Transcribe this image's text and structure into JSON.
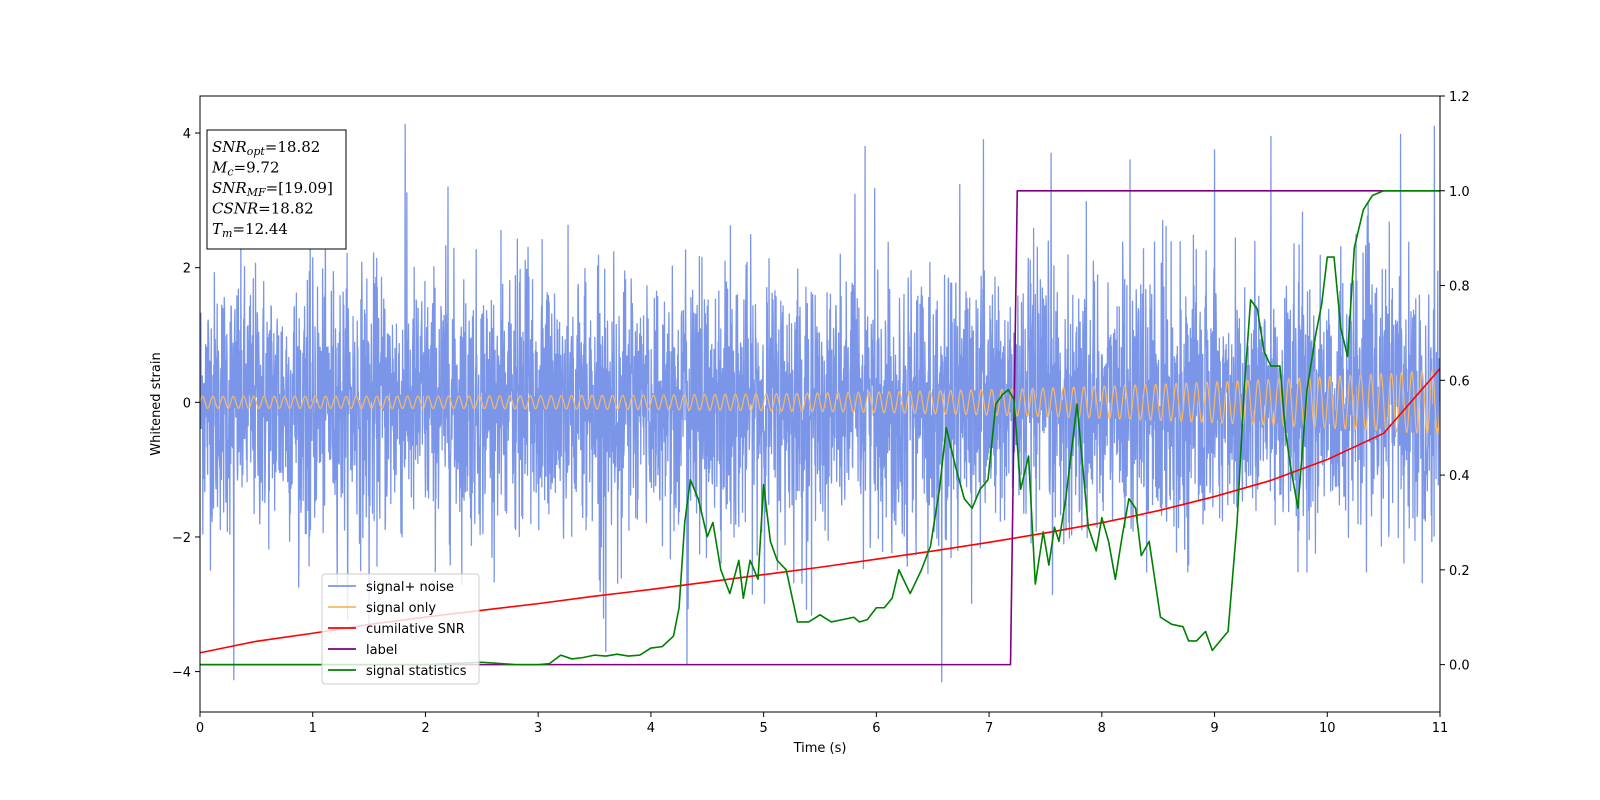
{
  "chart_data": {
    "type": "line",
    "title": "",
    "xlabel": "Time (s)",
    "ylabel": "Whitened strain",
    "y2label": "",
    "xlim": [
      0,
      11
    ],
    "ylim": [
      -4.6,
      4.55
    ],
    "y2lim": [
      -0.1,
      1.2
    ],
    "xticks": [
      0,
      1,
      2,
      3,
      4,
      5,
      6,
      7,
      8,
      9,
      10,
      11
    ],
    "yticks": [
      -4,
      -2,
      0,
      2,
      4
    ],
    "y2ticks": [
      0.0,
      0.2,
      0.4,
      0.6,
      0.8,
      1.0,
      1.2
    ],
    "y2tick_labels": [
      "0.0",
      "0.2",
      "0.4",
      "0.6",
      "0.8",
      "1.0",
      "1.2"
    ],
    "grid": false,
    "legend_position": "lower-left",
    "stats_box": {
      "position": "top-left",
      "lines": [
        {
          "symbol": "SNR",
          "sub": "opt",
          "value": "=18.82"
        },
        {
          "symbol": "M",
          "sub": "c",
          "value": "=9.72"
        },
        {
          "symbol": "SNR",
          "sub": "MF",
          "value": "=[19.09]"
        },
        {
          "symbol": "CSNR",
          "sub": "",
          "value": "=18.82"
        },
        {
          "symbol": "T",
          "sub": "m",
          "value": "=12.44"
        }
      ]
    },
    "series": [
      {
        "name": "signal+ noise",
        "axis": "left",
        "color": "#7b96e8",
        "kind": "noise",
        "std": 0.95,
        "max_abs": 4.15,
        "spikes": [
          [
            1.82,
            4.13
          ],
          [
            0.3,
            -4.12
          ],
          [
            6.58,
            -4.15
          ],
          [
            10.95,
            4.1
          ],
          [
            4.32,
            -3.9
          ],
          [
            5.9,
            3.8
          ],
          [
            6.95,
            3.9
          ],
          [
            9.5,
            3.95
          ],
          [
            10.65,
            3.98
          ],
          [
            3.6,
            -3.7
          ],
          [
            8.25,
            3.6
          ],
          [
            2.2,
            3.2
          ],
          [
            1.5,
            -3.4
          ],
          [
            7.55,
            3.7
          ],
          [
            9.0,
            3.75
          ]
        ]
      },
      {
        "name": "signal only",
        "axis": "left",
        "color": "#f5b86a",
        "kind": "chirp",
        "amp_start": 0.09,
        "amp_end": 0.48,
        "cycles_per_second": 11
      },
      {
        "name": "cumilative SNR",
        "axis": "left",
        "color": "#ff0000",
        "x": [
          0,
          0.5,
          1,
          1.5,
          2,
          2.5,
          3,
          3.5,
          4,
          4.5,
          5,
          5.5,
          6,
          6.5,
          7,
          7.5,
          8,
          8.5,
          9,
          9.5,
          10,
          10.5,
          11
        ],
        "y": [
          -3.72,
          -3.55,
          -3.43,
          -3.3,
          -3.19,
          -3.09,
          -2.99,
          -2.88,
          -2.78,
          -2.67,
          -2.56,
          -2.45,
          -2.33,
          -2.21,
          -2.08,
          -1.94,
          -1.79,
          -1.61,
          -1.4,
          -1.16,
          -0.85,
          -0.46,
          0.5
        ]
      },
      {
        "name": "label",
        "axis": "right",
        "color": "#800080",
        "x": [
          0,
          7.19,
          7.25,
          11
        ],
        "y": [
          0.0,
          0.0,
          1.0,
          1.0
        ]
      },
      {
        "name": "signal statistics",
        "axis": "right",
        "color": "#008000",
        "x": [
          0,
          0.5,
          1,
          1.5,
          2,
          2.5,
          2.8,
          3.0,
          3.1,
          3.2,
          3.3,
          3.4,
          3.5,
          3.6,
          3.7,
          3.8,
          3.9,
          4.0,
          4.1,
          4.2,
          4.25,
          4.3,
          4.35,
          4.42,
          4.5,
          4.55,
          4.62,
          4.7,
          4.78,
          4.82,
          4.88,
          4.95,
          5.0,
          5.06,
          5.12,
          5.2,
          5.3,
          5.4,
          5.5,
          5.6,
          5.7,
          5.8,
          5.85,
          5.92,
          6.0,
          6.07,
          6.14,
          6.2,
          6.3,
          6.4,
          6.48,
          6.56,
          6.62,
          6.7,
          6.78,
          6.85,
          6.92,
          6.99,
          7.06,
          7.12,
          7.17,
          7.22,
          7.28,
          7.35,
          7.41,
          7.48,
          7.53,
          7.58,
          7.62,
          7.68,
          7.78,
          7.88,
          7.95,
          8.0,
          8.06,
          8.12,
          8.18,
          8.24,
          8.3,
          8.35,
          8.42,
          8.52,
          8.62,
          8.72,
          8.77,
          8.84,
          8.92,
          8.98,
          9.05,
          9.12,
          9.2,
          9.26,
          9.32,
          9.38,
          9.44,
          9.5,
          9.58,
          9.63,
          9.68,
          9.74,
          9.82,
          9.9,
          9.95,
          10.0,
          10.06,
          10.12,
          10.18,
          10.24,
          10.32,
          10.4,
          10.5,
          10.6,
          10.7,
          10.8,
          10.9,
          11.0
        ],
        "y": [
          0.0,
          0.0,
          0.0,
          0.0,
          0.0,
          0.005,
          0.0,
          0.0,
          0.002,
          0.02,
          0.012,
          0.015,
          0.02,
          0.018,
          0.022,
          0.018,
          0.02,
          0.035,
          0.038,
          0.06,
          0.12,
          0.3,
          0.39,
          0.35,
          0.27,
          0.3,
          0.2,
          0.15,
          0.22,
          0.14,
          0.22,
          0.18,
          0.38,
          0.26,
          0.22,
          0.2,
          0.09,
          0.09,
          0.105,
          0.09,
          0.095,
          0.1,
          0.09,
          0.095,
          0.12,
          0.12,
          0.14,
          0.2,
          0.15,
          0.2,
          0.25,
          0.37,
          0.5,
          0.42,
          0.35,
          0.33,
          0.37,
          0.39,
          0.55,
          0.57,
          0.58,
          0.56,
          0.37,
          0.44,
          0.17,
          0.28,
          0.21,
          0.29,
          0.26,
          0.35,
          0.55,
          0.29,
          0.24,
          0.31,
          0.26,
          0.18,
          0.27,
          0.35,
          0.33,
          0.23,
          0.26,
          0.1,
          0.085,
          0.08,
          0.05,
          0.05,
          0.07,
          0.03,
          0.05,
          0.07,
          0.3,
          0.57,
          0.77,
          0.75,
          0.66,
          0.63,
          0.63,
          0.49,
          0.41,
          0.33,
          0.58,
          0.7,
          0.76,
          0.86,
          0.86,
          0.71,
          0.65,
          0.88,
          0.96,
          0.99,
          1.0,
          1.0,
          1.0,
          1.0,
          1.0,
          1.0
        ]
      }
    ]
  }
}
